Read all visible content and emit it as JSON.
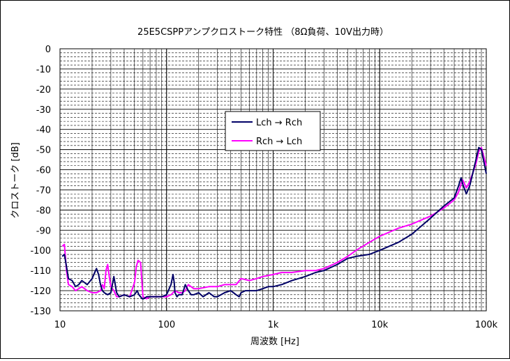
{
  "chart_data": {
    "type": "line",
    "title": "25E5CSPPアンプクロストーク特性 （8Ω負荷、10V出力時）",
    "xlabel": "周波数 [Hz]",
    "ylabel": "クロストーク [dB]",
    "xscale": "log",
    "xlim": [
      10,
      100000
    ],
    "ylim": [
      -130,
      0
    ],
    "grid": true,
    "legend_position": "upper-middle",
    "x_tick_labels": [
      "10",
      "100",
      "1k",
      "10k",
      "100k"
    ],
    "x_tick_values": [
      10,
      100,
      1000,
      10000,
      100000
    ],
    "y_tick_values": [
      0,
      -10,
      -20,
      -30,
      -40,
      -50,
      -60,
      -70,
      -80,
      -90,
      -100,
      -110,
      -120,
      -130
    ],
    "y_tick_labels": [
      "0",
      "-10",
      "-20",
      "-30",
      "-40",
      "-50",
      "-60",
      "-70",
      "-80",
      "-90",
      "-100",
      "-110",
      "-120",
      "-130"
    ],
    "series": [
      {
        "name": "Lch → Rch",
        "color": "#000066",
        "x": [
          10.5,
          11,
          11.5,
          12,
          13,
          14,
          15,
          16,
          17,
          18,
          20,
          22,
          23,
          24,
          25,
          26,
          28,
          30,
          32,
          34,
          36,
          40,
          45,
          50,
          53,
          55,
          57,
          59,
          61,
          65,
          70,
          80,
          90,
          100,
          110,
          115,
          118,
          120,
          125,
          130,
          140,
          150,
          160,
          170,
          180,
          200,
          220,
          250,
          280,
          300,
          350,
          400,
          450,
          480,
          500,
          550,
          600,
          700,
          800,
          900,
          1000,
          1200,
          1500,
          2000,
          2500,
          3000,
          4000,
          5000,
          6000,
          8000,
          10000,
          15000,
          20000,
          30000,
          40000,
          50000,
          55000,
          58000,
          60000,
          65000,
          70000,
          80000,
          85000,
          90000,
          100000
        ],
        "y": [
          -103,
          -102,
          -108,
          -114,
          -115,
          -118,
          -117,
          -115,
          -116,
          -117,
          -114,
          -109,
          -112,
          -117,
          -120,
          -121,
          -122,
          -121,
          -113,
          -121,
          -123,
          -122,
          -123,
          -122,
          -120,
          -122,
          -123,
          -124,
          -124,
          -123,
          -123,
          -123,
          -123,
          -122,
          -117,
          -112,
          -116,
          -121,
          -123,
          -122,
          -122,
          -117,
          -120,
          -122,
          -122,
          -121,
          -123,
          -121,
          -123,
          -123,
          -121,
          -120,
          -122,
          -123,
          -121,
          -120,
          -120,
          -120,
          -119,
          -118,
          -118,
          -117,
          -115,
          -113,
          -111,
          -110,
          -107,
          -104,
          -103,
          -102,
          -100,
          -96,
          -92,
          -84,
          -78,
          -74,
          -68,
          -64,
          -67,
          -72,
          -68,
          -55,
          -49,
          -50,
          -62
        ]
      },
      {
        "name": "Rch → Lch",
        "color": "#ff00ff",
        "x": [
          10.5,
          11,
          11.5,
          12,
          13,
          14,
          15,
          16,
          17,
          18,
          20,
          22,
          24,
          25,
          26,
          27,
          28,
          29,
          30,
          32,
          34,
          36,
          40,
          45,
          50,
          52,
          54,
          57,
          60,
          65,
          70,
          80,
          90,
          100,
          110,
          120,
          130,
          140,
          150,
          160,
          180,
          200,
          250,
          300,
          350,
          400,
          450,
          500,
          600,
          700,
          800,
          1000,
          1200,
          1500,
          2000,
          2500,
          3000,
          4000,
          5000,
          6000,
          8000,
          10000,
          15000,
          20000,
          30000,
          40000,
          50000,
          55000,
          58000,
          60000,
          65000,
          70000,
          80000,
          85000,
          90000,
          100000
        ],
        "y": [
          -98,
          -97,
          -110,
          -117,
          -118,
          -120,
          -119,
          -118,
          -119,
          -120,
          -121,
          -121,
          -120,
          -117,
          -119,
          -110,
          -107,
          -113,
          -118,
          -120,
          -123,
          -123,
          -122,
          -123,
          -116,
          -108,
          -105,
          -106,
          -123,
          -124,
          -123,
          -123,
          -123,
          -123,
          -122,
          -120,
          -121,
          -121,
          -120,
          -117,
          -119,
          -119,
          -118,
          -118,
          -117,
          -117,
          -117,
          -114,
          -115,
          -114,
          -113,
          -112,
          -111,
          -111,
          -110,
          -110,
          -109,
          -106,
          -103,
          -100,
          -96,
          -93,
          -89,
          -87,
          -83,
          -79,
          -75,
          -71,
          -67,
          -65,
          -69,
          -66,
          -57,
          -51,
          -49,
          -58
        ]
      }
    ]
  }
}
